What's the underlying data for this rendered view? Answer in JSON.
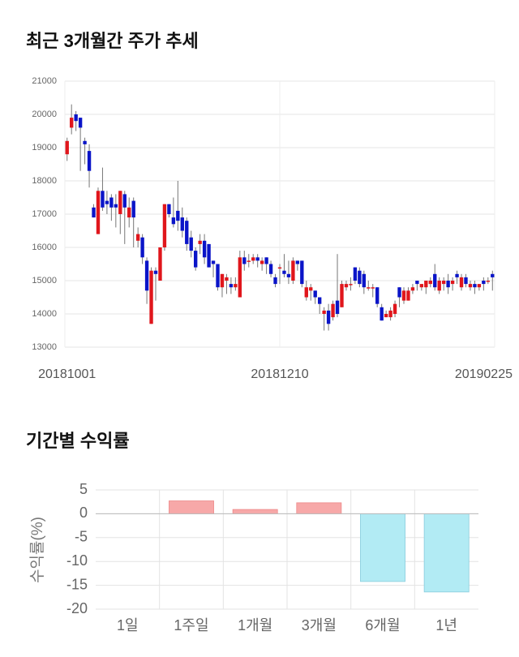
{
  "chart_data": [
    {
      "type": "candlestick",
      "title": "최근 3개월간 주가 추세",
      "categories": [
        "20181001",
        null,
        null,
        null,
        null,
        null,
        null,
        null,
        null,
        null,
        null,
        null,
        null,
        null,
        null,
        null,
        null,
        null,
        null,
        null,
        null,
        null,
        null,
        null,
        null,
        null,
        null,
        null,
        null,
        null,
        null,
        null,
        null,
        null,
        null,
        null,
        null,
        null,
        null,
        null,
        null,
        null,
        null,
        null,
        null,
        null,
        null,
        null,
        "20181210",
        null,
        null,
        null,
        null,
        null,
        null,
        null,
        null,
        null,
        null,
        null,
        null,
        null,
        null,
        null,
        null,
        null,
        null,
        null,
        null,
        null,
        null,
        null,
        null,
        null,
        null,
        null,
        null,
        null,
        null,
        null,
        null,
        null,
        null,
        null,
        null,
        null,
        null,
        null,
        null,
        null,
        null,
        null,
        null,
        null,
        null,
        null,
        "20190225"
      ],
      "open": [
        18800,
        19600,
        20000,
        19900,
        19200,
        18900,
        17200,
        16400,
        17700,
        17400,
        17500,
        17300,
        17000,
        17600,
        16900,
        17400,
        16200,
        16300,
        15600,
        13700,
        15300,
        15000,
        16000,
        17300,
        16900,
        17100,
        16900,
        16800,
        16300,
        15900,
        16100,
        16200,
        16100,
        15600,
        15500,
        14800,
        15000,
        14900,
        14800,
        14500,
        15700,
        15600,
        15600,
        15700,
        15500,
        15700,
        15500,
        15100,
        15400,
        15300,
        15200,
        15000,
        15600,
        15600,
        14500,
        14700,
        14700,
        14500,
        14000,
        14100,
        13900,
        14400,
        14200,
        14800,
        14900,
        15400,
        15300,
        15200,
        14800,
        14800,
        14800,
        14200,
        13900,
        13900,
        14000,
        14800,
        14400,
        14400,
        14700,
        15000,
        14800,
        14800,
        14900,
        15200,
        14700,
        14900,
        15000,
        14900,
        15200,
        14800,
        15100,
        14800,
        14900,
        14800,
        15000,
        15000,
        15200
      ],
      "high": [
        19300,
        20300,
        20100,
        19900,
        19300,
        19100,
        17300,
        17800,
        18400,
        17700,
        17600,
        17600,
        17700,
        17700,
        17500,
        17500,
        16600,
        16400,
        15700,
        15400,
        15400,
        16000,
        17300,
        17300,
        17500,
        18000,
        17200,
        16900,
        16500,
        16000,
        16400,
        16400,
        16100,
        15600,
        15500,
        15200,
        15200,
        15100,
        15100,
        15900,
        15900,
        15800,
        15800,
        15800,
        15700,
        15700,
        15600,
        15200,
        15500,
        15800,
        15600,
        15700,
        15600,
        15600,
        15000,
        14900,
        14700,
        14500,
        14200,
        14300,
        14400,
        15800,
        15000,
        15000,
        15100,
        15400,
        15400,
        15300,
        15000,
        14900,
        14800,
        14300,
        14100,
        14200,
        14400,
        14800,
        14800,
        14800,
        14900,
        15000,
        14900,
        15000,
        15100,
        15500,
        15100,
        15100,
        15200,
        15100,
        15300,
        15200,
        15200,
        15000,
        15000,
        14900,
        15100,
        15100,
        15300
      ],
      "low": [
        18600,
        19400,
        19500,
        18300,
        18500,
        17800,
        16900,
        16400,
        17100,
        17000,
        16800,
        16600,
        16400,
        16100,
        16600,
        16000,
        16000,
        15500,
        14300,
        13700,
        14400,
        15000,
        15900,
        16900,
        16600,
        16500,
        16300,
        15900,
        15700,
        15300,
        15800,
        15500,
        15400,
        15100,
        14700,
        14500,
        14600,
        14600,
        14700,
        14500,
        15300,
        15400,
        15500,
        15400,
        15300,
        15200,
        15100,
        14800,
        14900,
        15100,
        14900,
        14900,
        15300,
        14800,
        14400,
        14400,
        14300,
        14000,
        13500,
        13500,
        13800,
        13900,
        14200,
        14700,
        14700,
        14900,
        14800,
        14600,
        14700,
        14500,
        14200,
        13800,
        13900,
        13800,
        13900,
        14200,
        14300,
        14400,
        14600,
        14700,
        14700,
        14600,
        14800,
        14700,
        14600,
        14700,
        14600,
        14700,
        14900,
        14700,
        14800,
        14700,
        14600,
        14700,
        14700,
        14900,
        14700
      ],
      "close": [
        19200,
        19900,
        19800,
        19600,
        19100,
        18300,
        16900,
        17700,
        17200,
        17300,
        17200,
        17200,
        17700,
        17200,
        17200,
        16900,
        16400,
        15700,
        14700,
        15300,
        15200,
        16000,
        17300,
        17000,
        16700,
        16800,
        16500,
        16100,
        15900,
        15400,
        16200,
        15700,
        15400,
        15500,
        14800,
        15200,
        15100,
        14800,
        14900,
        15700,
        15500,
        15600,
        15700,
        15600,
        15600,
        15500,
        15200,
        14900,
        15400,
        15200,
        15100,
        15600,
        15500,
        14900,
        14800,
        14800,
        14500,
        14300,
        14100,
        13700,
        14300,
        14000,
        14900,
        14900,
        14900,
        15000,
        14900,
        14800,
        14800,
        14800,
        14300,
        13800,
        14000,
        14100,
        14300,
        14500,
        14700,
        14700,
        14800,
        14900,
        14900,
        15000,
        15000,
        14800,
        15000,
        15000,
        14800,
        15000,
        15100,
        15100,
        14900,
        14900,
        14800,
        14900,
        14900,
        15000,
        15100
      ],
      "up_color": "#e0161c",
      "down_color": "#0a14c8",
      "ylim": [
        13000,
        21000
      ],
      "yticks": [
        13000,
        14000,
        15000,
        16000,
        17000,
        18000,
        19000,
        20000,
        21000
      ],
      "grid": true
    },
    {
      "type": "bar",
      "title": "기간별 수익률",
      "y_label": "수익률(%)",
      "categories": [
        "1일",
        "1주일",
        "1개월",
        "3개월",
        "6개월",
        "1년"
      ],
      "values": [
        0,
        2.7,
        0.9,
        2.3,
        -14.2,
        -16.4
      ],
      "positive_color": "#f7a8a8",
      "negative_color": "#b2ebf4",
      "ylim": [
        -20,
        5
      ],
      "yticks": [
        5,
        0,
        -5,
        -10,
        -15,
        -20
      ],
      "grid": true
    }
  ]
}
